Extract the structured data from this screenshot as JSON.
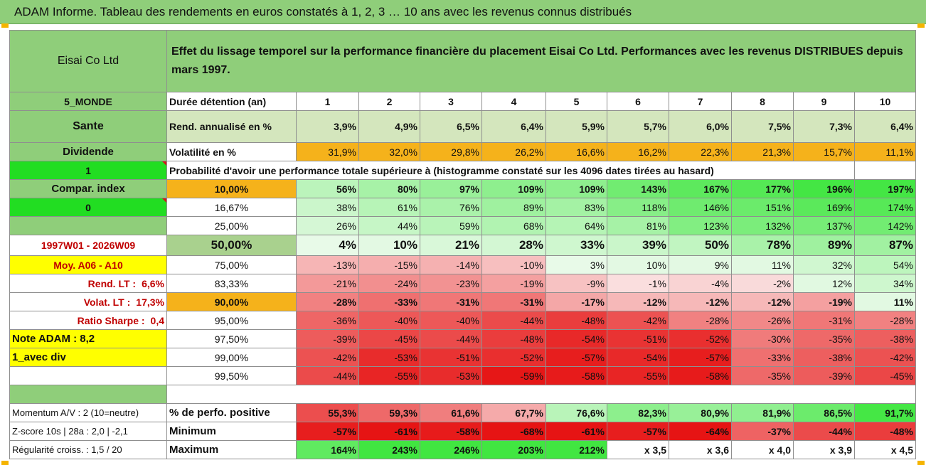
{
  "banner_title": "ADAM Informe. Tableau des rendements en euros constatés à 1, 2, 3 … 10 ans avec les revenus connus distribués",
  "company": "Eisai Co Ltd",
  "description": "Effet du lissage temporel sur la performance financière du placement Eisai Co Ltd. Performances avec les revenus DISTRIBUES depuis mars 1997.",
  "side": {
    "zone": "5_MONDE",
    "sector": "Sante",
    "type": "Dividende",
    "one": "1",
    "compar": "Compar. index",
    "zero": "0",
    "period": "1997W01 - 2026W09",
    "moy": "Moy. A06 - A10",
    "rend_lt_label": "Rend. LT :",
    "rend_lt_value": "6,6%",
    "volat_lt_label": "Volat. LT :",
    "volat_lt_value": "17,3%",
    "sharpe_label": "Ratio Sharpe :",
    "sharpe_value": "0,4",
    "note": "Note ADAM : 8,2",
    "div": "1_avec div",
    "momentum": "Momentum A/V : 2 (10=neutre)",
    "zscore": "Z-score 10s | 28a : 2,0 | -2,1",
    "regularite": "Régularité croiss. : 1,5 / 20"
  },
  "labels": {
    "duree": "Durée détention (an)",
    "rend": "Rend. annualisé en %",
    "volat": "Volatilité en %",
    "proba": "Probabilité d'avoir une performance totale supérieure à (histogramme constaté sur les 4096 dates tirées au hasard)",
    "pos": "% de perfo. positive",
    "min": "Minimum",
    "max": "Maximum"
  },
  "years": [
    "1",
    "2",
    "3",
    "4",
    "5",
    "6",
    "7",
    "8",
    "9",
    "10"
  ],
  "rend": [
    "3,9%",
    "4,9%",
    "6,5%",
    "6,4%",
    "5,9%",
    "5,7%",
    "6,0%",
    "7,5%",
    "7,3%",
    "6,4%"
  ],
  "volat": [
    "31,9%",
    "32,0%",
    "29,8%",
    "26,2%",
    "16,6%",
    "16,2%",
    "22,3%",
    "21,3%",
    "15,7%",
    "11,1%"
  ],
  "prob_rows": [
    {
      "pct": "10,00%",
      "values": [
        "56%",
        "80%",
        "97%",
        "109%",
        "109%",
        "143%",
        "167%",
        "177%",
        "196%",
        "197%"
      ]
    },
    {
      "pct": "16,67%",
      "values": [
        "38%",
        "61%",
        "76%",
        "89%",
        "83%",
        "118%",
        "146%",
        "151%",
        "169%",
        "174%"
      ]
    },
    {
      "pct": "25,00%",
      "values": [
        "26%",
        "44%",
        "59%",
        "68%",
        "64%",
        "81%",
        "123%",
        "132%",
        "137%",
        "142%"
      ]
    },
    {
      "pct": "50,00%",
      "values": [
        "4%",
        "10%",
        "21%",
        "28%",
        "33%",
        "39%",
        "50%",
        "78%",
        "89%",
        "87%"
      ]
    },
    {
      "pct": "75,00%",
      "values": [
        "-13%",
        "-15%",
        "-14%",
        "-10%",
        "3%",
        "10%",
        "9%",
        "11%",
        "32%",
        "54%"
      ]
    },
    {
      "pct": "83,33%",
      "values": [
        "-21%",
        "-24%",
        "-23%",
        "-19%",
        "-9%",
        "-1%",
        "-4%",
        "-2%",
        "12%",
        "34%"
      ]
    },
    {
      "pct": "90,00%",
      "values": [
        "-28%",
        "-33%",
        "-31%",
        "-31%",
        "-17%",
        "-12%",
        "-12%",
        "-12%",
        "-19%",
        "11%"
      ]
    },
    {
      "pct": "95,00%",
      "values": [
        "-36%",
        "-40%",
        "-40%",
        "-44%",
        "-48%",
        "-42%",
        "-28%",
        "-26%",
        "-31%",
        "-28%"
      ]
    },
    {
      "pct": "97,50%",
      "values": [
        "-39%",
        "-45%",
        "-44%",
        "-48%",
        "-54%",
        "-51%",
        "-52%",
        "-30%",
        "-35%",
        "-38%"
      ]
    },
    {
      "pct": "99,00%",
      "values": [
        "-42%",
        "-53%",
        "-51%",
        "-52%",
        "-57%",
        "-54%",
        "-57%",
        "-33%",
        "-38%",
        "-42%"
      ]
    },
    {
      "pct": "99,50%",
      "values": [
        "-44%",
        "-55%",
        "-53%",
        "-59%",
        "-58%",
        "-55%",
        "-58%",
        "-35%",
        "-39%",
        "-45%"
      ]
    }
  ],
  "positive": [
    "55,3%",
    "59,3%",
    "61,6%",
    "67,7%",
    "76,6%",
    "82,3%",
    "80,9%",
    "81,9%",
    "86,5%",
    "91,7%"
  ],
  "minimum": [
    "-57%",
    "-61%",
    "-58%",
    "-68%",
    "-61%",
    "-57%",
    "-64%",
    "-37%",
    "-44%",
    "-48%"
  ],
  "maximum": [
    "164%",
    "243%",
    "246%",
    "203%",
    "212%",
    "x 3,5",
    "x 3,6",
    "x 4,0",
    "x 3,9",
    "x 4,5"
  ],
  "colors": {
    "header_green": "#8fce7a",
    "rend_bg": "#d4e6bd",
    "volat_bg": "#f5b21b",
    "bright_green": "#22dd22",
    "yellow": "#ffff00",
    "red_text": "#c00000"
  }
}
